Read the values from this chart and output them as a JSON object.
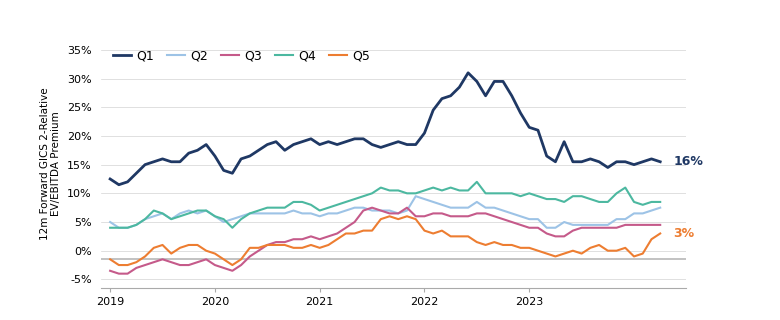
{
  "ylabel": "12m Forward GICS 2-Relative\nEV/EBITDA Premium",
  "ylim": [
    -0.065,
    0.37
  ],
  "yticks": [
    -0.05,
    0.0,
    0.05,
    0.1,
    0.15,
    0.2,
    0.25,
    0.3,
    0.35
  ],
  "ytick_labels": [
    "-5%",
    "0%",
    "5%",
    "10%",
    "15%",
    "20%",
    "25%",
    "30%",
    "35%"
  ],
  "colors": {
    "Q1": "#1f3864",
    "Q2": "#9dc3e6",
    "Q3": "#c55a8a",
    "Q4": "#4cb8a0",
    "Q5": "#ed7d31"
  },
  "end_labels": {
    "Q1": "16%",
    "Q5": "3%"
  },
  "end_label_colors": {
    "Q1": "#1f3864",
    "Q5": "#ed7d31"
  },
  "background_color": "#ffffff",
  "grid_color": "#d3d3d3",
  "zero_line_color": "#b8b8b8",
  "xtick_labels": [
    "2019",
    "2020",
    "2021",
    "2022",
    "2023"
  ],
  "xtick_pos": [
    0,
    12,
    24,
    36,
    48
  ],
  "Q1": [
    0.125,
    0.115,
    0.12,
    0.135,
    0.15,
    0.155,
    0.16,
    0.155,
    0.155,
    0.17,
    0.175,
    0.185,
    0.165,
    0.14,
    0.135,
    0.16,
    0.165,
    0.175,
    0.185,
    0.19,
    0.175,
    0.185,
    0.19,
    0.195,
    0.185,
    0.19,
    0.185,
    0.19,
    0.195,
    0.195,
    0.185,
    0.18,
    0.185,
    0.19,
    0.185,
    0.185,
    0.205,
    0.245,
    0.265,
    0.27,
    0.285,
    0.31,
    0.295,
    0.27,
    0.295,
    0.295,
    0.27,
    0.24,
    0.215,
    0.21,
    0.165,
    0.155,
    0.19,
    0.155,
    0.155,
    0.16,
    0.155,
    0.145,
    0.155,
    0.155,
    0.15,
    0.155,
    0.16,
    0.155
  ],
  "Q2": [
    0.05,
    0.04,
    0.04,
    0.045,
    0.055,
    0.06,
    0.065,
    0.055,
    0.065,
    0.07,
    0.065,
    0.07,
    0.06,
    0.05,
    0.055,
    0.06,
    0.065,
    0.065,
    0.065,
    0.065,
    0.065,
    0.07,
    0.065,
    0.065,
    0.06,
    0.065,
    0.065,
    0.07,
    0.075,
    0.075,
    0.07,
    0.07,
    0.07,
    0.065,
    0.07,
    0.095,
    0.09,
    0.085,
    0.08,
    0.075,
    0.075,
    0.075,
    0.085,
    0.075,
    0.075,
    0.07,
    0.065,
    0.06,
    0.055,
    0.055,
    0.04,
    0.04,
    0.05,
    0.045,
    0.045,
    0.045,
    0.045,
    0.045,
    0.055,
    0.055,
    0.065,
    0.065,
    0.07,
    0.075
  ],
  "Q3": [
    -0.035,
    -0.04,
    -0.04,
    -0.03,
    -0.025,
    -0.02,
    -0.015,
    -0.02,
    -0.025,
    -0.025,
    -0.02,
    -0.015,
    -0.025,
    -0.03,
    -0.035,
    -0.025,
    -0.01,
    0.0,
    0.01,
    0.015,
    0.015,
    0.02,
    0.02,
    0.025,
    0.02,
    0.025,
    0.03,
    0.04,
    0.05,
    0.07,
    0.075,
    0.07,
    0.065,
    0.065,
    0.075,
    0.06,
    0.06,
    0.065,
    0.065,
    0.06,
    0.06,
    0.06,
    0.065,
    0.065,
    0.06,
    0.055,
    0.05,
    0.045,
    0.04,
    0.04,
    0.03,
    0.025,
    0.025,
    0.035,
    0.04,
    0.04,
    0.04,
    0.04,
    0.04,
    0.045,
    0.045,
    0.045,
    0.045,
    0.045
  ],
  "Q4": [
    0.04,
    0.04,
    0.04,
    0.045,
    0.055,
    0.07,
    0.065,
    0.055,
    0.06,
    0.065,
    0.07,
    0.07,
    0.06,
    0.055,
    0.04,
    0.055,
    0.065,
    0.07,
    0.075,
    0.075,
    0.075,
    0.085,
    0.085,
    0.08,
    0.07,
    0.075,
    0.08,
    0.085,
    0.09,
    0.095,
    0.1,
    0.11,
    0.105,
    0.105,
    0.1,
    0.1,
    0.105,
    0.11,
    0.105,
    0.11,
    0.105,
    0.105,
    0.12,
    0.1,
    0.1,
    0.1,
    0.1,
    0.095,
    0.1,
    0.095,
    0.09,
    0.09,
    0.085,
    0.095,
    0.095,
    0.09,
    0.085,
    0.085,
    0.1,
    0.11,
    0.085,
    0.08,
    0.085,
    0.085
  ],
  "Q5": [
    -0.015,
    -0.025,
    -0.025,
    -0.02,
    -0.01,
    0.005,
    0.01,
    -0.005,
    0.005,
    0.01,
    0.01,
    0.0,
    -0.005,
    -0.015,
    -0.025,
    -0.015,
    0.005,
    0.005,
    0.01,
    0.01,
    0.01,
    0.005,
    0.005,
    0.01,
    0.005,
    0.01,
    0.02,
    0.03,
    0.03,
    0.035,
    0.035,
    0.055,
    0.06,
    0.055,
    0.06,
    0.055,
    0.035,
    0.03,
    0.035,
    0.025,
    0.025,
    0.025,
    0.015,
    0.01,
    0.015,
    0.01,
    0.01,
    0.005,
    0.005,
    0.0,
    -0.005,
    -0.01,
    -0.005,
    0.0,
    -0.005,
    0.005,
    0.01,
    0.0,
    0.0,
    0.005,
    -0.01,
    -0.005,
    0.02,
    0.03
  ]
}
